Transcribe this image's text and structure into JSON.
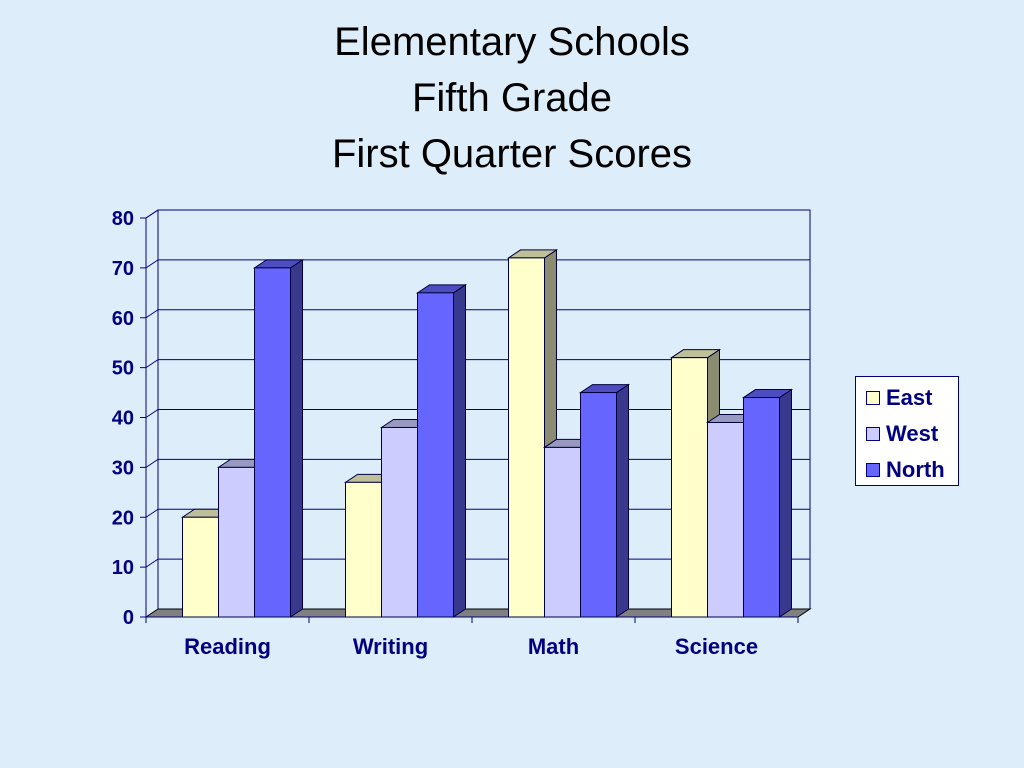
{
  "title_lines": [
    "Elementary Schools",
    "Fifth Grade",
    "First Quarter Scores"
  ],
  "chart_data": {
    "type": "bar",
    "title": "Elementary Schools Fifth Grade First Quarter Scores",
    "categories": [
      "Reading",
      "Writing",
      "Math",
      "Science"
    ],
    "series": [
      {
        "name": "East",
        "values": [
          20,
          27,
          72,
          52
        ],
        "color": "#ffffcc"
      },
      {
        "name": "West",
        "values": [
          30,
          38,
          34,
          39
        ],
        "color": "#ccccff"
      },
      {
        "name": "North",
        "values": [
          70,
          65,
          45,
          44
        ],
        "color": "#6666ff"
      }
    ],
    "ylim": [
      0,
      80
    ],
    "yticks": [
      "0",
      "10",
      "20",
      "30",
      "40",
      "50",
      "60",
      "70",
      "80"
    ],
    "grid": true,
    "legend_position": "right",
    "style": "3d-clustered-column"
  },
  "legend": {
    "items": [
      {
        "label": "East",
        "color": "#ffffcc"
      },
      {
        "label": "West",
        "color": "#ccccff"
      },
      {
        "label": "North",
        "color": "#6666ff"
      }
    ]
  },
  "colors": {
    "background": "#ddeefa",
    "axis": "#000080",
    "floor": "#808080"
  }
}
